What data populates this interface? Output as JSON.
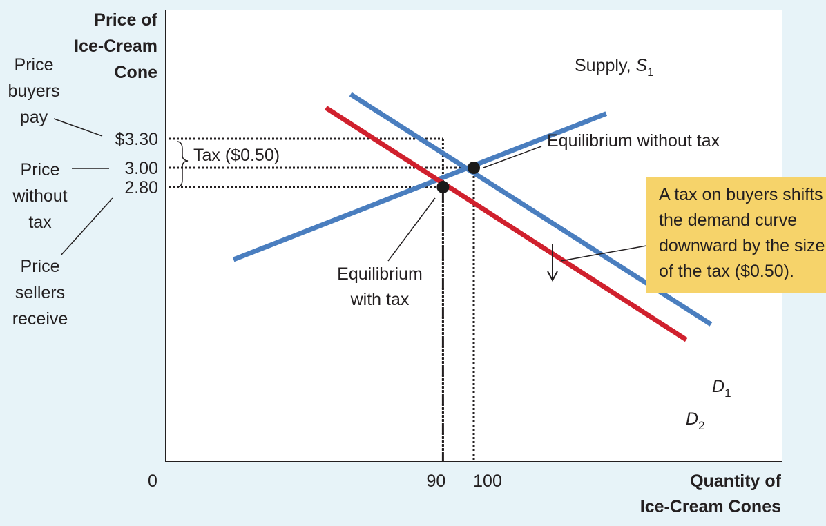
{
  "chart_data": {
    "type": "line",
    "title": "",
    "ylabel_lines": [
      "Price of",
      "Ice-Cream",
      "Cone"
    ],
    "xlabel_lines": [
      "Quantity of",
      "Ice-Cream Cones"
    ],
    "origin_label": "0",
    "y_ticks": [
      {
        "value": 3.3,
        "label": "$3.30"
      },
      {
        "value": 3.0,
        "label": "3.00"
      },
      {
        "value": 2.8,
        "label": "2.80"
      }
    ],
    "x_ticks": [
      {
        "value": 90,
        "label": "90"
      },
      {
        "value": 100,
        "label": "100"
      }
    ],
    "series": [
      {
        "id": "supply",
        "color": "#4a7ebf",
        "points": [
          [
            22,
            2.05
          ],
          [
            143,
            3.56
          ]
        ]
      },
      {
        "id": "d1",
        "color": "#4a7ebf",
        "points": [
          [
            60,
            3.76
          ],
          [
            177,
            1.38
          ]
        ]
      },
      {
        "id": "d2",
        "color": "#d0202d",
        "points": [
          [
            52,
            3.62
          ],
          [
            169,
            1.22
          ]
        ]
      }
    ],
    "curve_labels": [
      {
        "series": "supply",
        "text": "Supply, ",
        "italic": "S",
        "sub": "1"
      },
      {
        "series": "d1",
        "text": "",
        "italic": "D",
        "sub": "1"
      },
      {
        "series": "d2",
        "text": "",
        "italic": "D",
        "sub": "2"
      }
    ],
    "equilibria": [
      {
        "x": 100,
        "y": 3.0,
        "label_lines": [
          "Equilibrium without tax"
        ]
      },
      {
        "x": 90,
        "y": 2.8,
        "label_lines": [
          "Equilibrium",
          "with tax"
        ]
      }
    ],
    "guides": [
      {
        "x": 90,
        "y": 3.3
      },
      {
        "x": 100,
        "y": 3.0
      },
      {
        "x": 90,
        "y": 2.8
      }
    ],
    "tax_label": "Tax ($0.50)",
    "side_labels": {
      "buyers": [
        "Price",
        "buyers",
        "pay"
      ],
      "without_tax": [
        "Price",
        "without",
        "tax"
      ],
      "sellers": [
        "Price",
        "sellers",
        "receive"
      ]
    },
    "callout": {
      "lines": [
        "A tax on buyers shifts",
        "the demand curve",
        "downward by the size",
        "of the tax ($0.50)."
      ],
      "bg_color": "#f6d36a"
    },
    "colors": {
      "supply": "#4a7ebf",
      "demand_before": "#4a7ebf",
      "demand_after": "#d0202d",
      "background": "#e7f3f8"
    }
  }
}
